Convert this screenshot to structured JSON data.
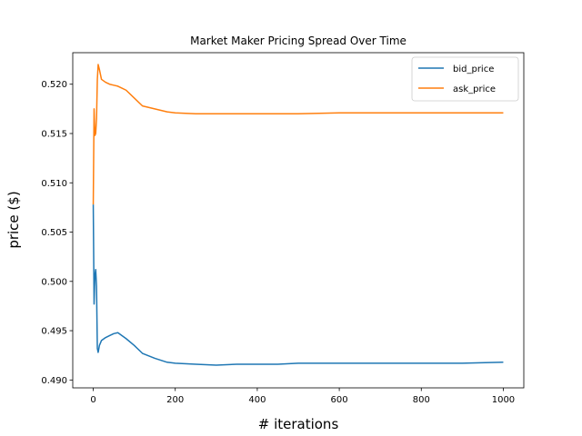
{
  "chart_data": {
    "type": "line",
    "title": "Market Maker Pricing Spread Over Time",
    "xlabel": "# iterations",
    "ylabel": "price ($)",
    "xlim": [
      -50,
      1050
    ],
    "ylim": [
      0.4892,
      0.5232
    ],
    "xticks": [
      0,
      200,
      400,
      600,
      800,
      1000
    ],
    "yticks": [
      0.49,
      0.495,
      0.5,
      0.505,
      0.51,
      0.515,
      0.52
    ],
    "grid": false,
    "legend": "top-right",
    "series": [
      {
        "name": "bid_price",
        "color": "#1f77b4",
        "x": [
          0,
          2,
          4,
          6,
          8,
          10,
          12,
          15,
          20,
          30,
          40,
          50,
          60,
          70,
          80,
          100,
          120,
          150,
          180,
          200,
          250,
          300,
          350,
          400,
          450,
          500,
          600,
          700,
          800,
          900,
          1000
        ],
        "y": [
          0.5078,
          0.4977,
          0.5006,
          0.5012,
          0.4995,
          0.4932,
          0.4928,
          0.4935,
          0.494,
          0.4943,
          0.4945,
          0.4947,
          0.4948,
          0.4945,
          0.4942,
          0.4935,
          0.4927,
          0.4922,
          0.4918,
          0.4917,
          0.4916,
          0.4915,
          0.4916,
          0.4916,
          0.4916,
          0.4917,
          0.4917,
          0.4917,
          0.4917,
          0.4917,
          0.4918
        ]
      },
      {
        "name": "ask_price",
        "color": "#ff7f0e",
        "x": [
          0,
          2,
          4,
          6,
          8,
          10,
          12,
          15,
          20,
          30,
          40,
          50,
          60,
          70,
          80,
          100,
          120,
          150,
          180,
          200,
          250,
          300,
          350,
          400,
          450,
          500,
          600,
          700,
          800,
          900,
          1000
        ],
        "y": [
          0.5078,
          0.5175,
          0.5148,
          0.515,
          0.5165,
          0.5205,
          0.522,
          0.5215,
          0.5205,
          0.5202,
          0.52,
          0.5199,
          0.5198,
          0.5196,
          0.5194,
          0.5186,
          0.5178,
          0.5175,
          0.5172,
          0.5171,
          0.517,
          0.517,
          0.517,
          0.517,
          0.517,
          0.517,
          0.5171,
          0.5171,
          0.5171,
          0.5171,
          0.5171
        ]
      }
    ]
  }
}
